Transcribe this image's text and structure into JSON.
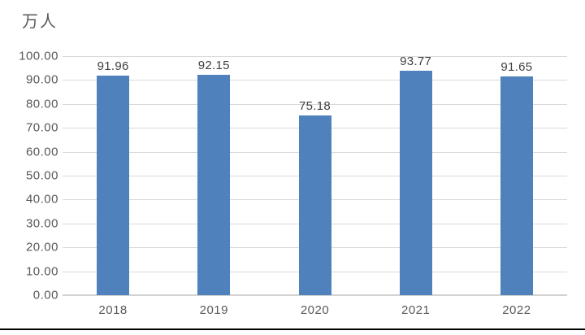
{
  "chart_data": {
    "type": "bar",
    "title": "万人",
    "categories": [
      "2018",
      "2019",
      "2020",
      "2021",
      "2022"
    ],
    "values": [
      91.96,
      92.15,
      75.18,
      93.77,
      91.65
    ],
    "value_labels": [
      "91.96",
      "92.15",
      "75.18",
      "93.77",
      "91.65"
    ],
    "xlabel": "",
    "ylabel": "万人",
    "ylim": [
      0,
      100
    ],
    "y_tick_step": 10,
    "y_ticks": [
      "0.00",
      "10.00",
      "20.00",
      "30.00",
      "40.00",
      "50.00",
      "60.00",
      "70.00",
      "80.00",
      "90.00",
      "100.00"
    ],
    "grid": "horizontal",
    "legend": "none",
    "colors": {
      "bar": "#4F81BD",
      "gridline": "#D9D9D9",
      "baseline": "#D2D2D2",
      "axis_label": "#595959",
      "data_label": "#404040",
      "title": "#595959",
      "bottom_border": "#000000",
      "background": "#FFFFFF"
    }
  }
}
